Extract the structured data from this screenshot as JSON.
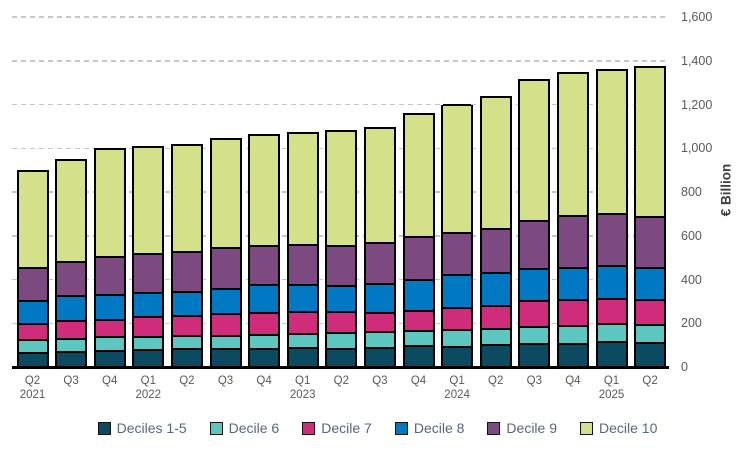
{
  "chart_data": {
    "type": "bar",
    "stacked": true,
    "title": "",
    "xlabel": "",
    "ylabel": "€ Billion",
    "ylim": [
      0,
      1600
    ],
    "y_ticks": [
      0,
      200,
      400,
      600,
      800,
      1000,
      1200,
      1400,
      1600
    ],
    "y_tick_labels": [
      "0",
      "200",
      "400",
      "600",
      "800",
      "1,000",
      "1,200",
      "1,400",
      "1,600"
    ],
    "grid": "dashed-horizontal",
    "legend_position": "bottom",
    "categories": [
      "Q2",
      "Q3",
      "Q4",
      "Q1",
      "Q2",
      "Q3",
      "Q4",
      "Q1",
      "Q2",
      "Q3",
      "Q4",
      "Q1",
      "Q2",
      "Q3",
      "Q4",
      "Q1",
      "Q2"
    ],
    "category_years": {
      "0": "2021",
      "3": "2022",
      "7": "2023",
      "11": "2024",
      "15": "2025"
    },
    "series": [
      {
        "name": "Deciles 1-5",
        "color": "#0b4a61",
        "values": [
          69,
          73,
          76,
          81,
          86,
          86,
          88,
          91,
          88,
          91,
          99,
          96,
          104,
          111,
          111,
          119,
          114
        ]
      },
      {
        "name": "Decile 6",
        "color": "#5ec6c1",
        "values": [
          58,
          61,
          66,
          59,
          59,
          60,
          64,
          66,
          72,
          74,
          69,
          76,
          76,
          76,
          80,
          84,
          84
        ]
      },
      {
        "name": "Decile 7",
        "color": "#cf2c7c",
        "values": [
          73,
          80,
          79,
          92,
          94,
          100,
          101,
          98,
          95,
          86,
          93,
          104,
          102,
          118,
          121,
          114,
          112
        ]
      },
      {
        "name": "Decile 8",
        "color": "#0079c2",
        "values": [
          105,
          115,
          114,
          112,
          110,
          117,
          126,
          126,
          118,
          132,
          140,
          148,
          152,
          149,
          147,
          148,
          147
        ]
      },
      {
        "name": "Decile 9",
        "color": "#7c4a81",
        "values": [
          154,
          156,
          172,
          177,
          181,
          186,
          180,
          181,
          185,
          187,
          198,
          195,
          203,
          217,
          235,
          238,
          233
        ]
      },
      {
        "name": "Decile 10",
        "color": "#d4e18a",
        "values": [
          441,
          466,
          496,
          489,
          489,
          498,
          506,
          512,
          524,
          529,
          561,
          581,
          602,
          644,
          655,
          658,
          686
        ]
      }
    ],
    "totals": [
      900,
      951,
      1003,
      1010,
      1019,
      1047,
      1065,
      1074,
      1082,
      1099,
      1160,
      1200,
      1239,
      1315,
      1349,
      1361,
      1376
    ]
  }
}
